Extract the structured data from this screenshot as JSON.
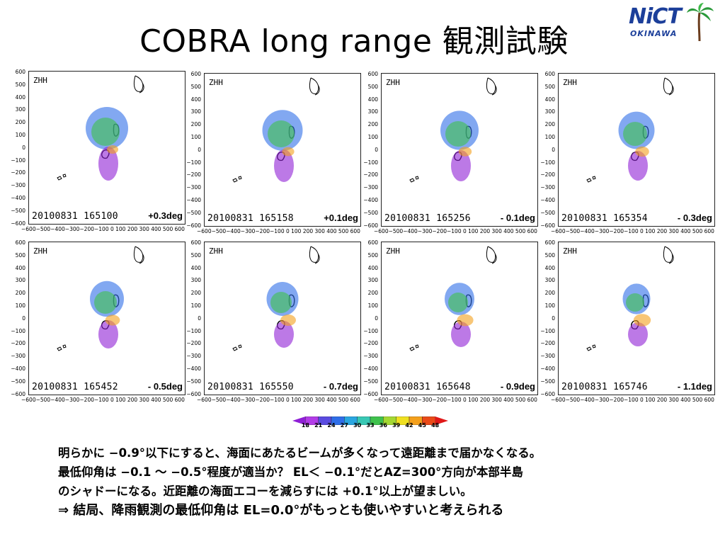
{
  "slide": {
    "title": "COBRA long range 観測試験",
    "logo": {
      "name": "NiCT",
      "sub": "OKINAWA"
    }
  },
  "axes": {
    "y_ticks": [
      "600",
      "500",
      "400",
      "300",
      "200",
      "100",
      "0",
      "−100",
      "−200",
      "−300",
      "−400",
      "−500",
      "−600"
    ],
    "x_ticks": "−600−500−400−300−200−100  0  100 200 300 400 500 600"
  },
  "panels": [
    {
      "product": "ZHH",
      "timestamp": "20100831  165100",
      "elevation": "+0.3deg"
    },
    {
      "product": "ZHH",
      "timestamp": "20100831  165158",
      "elevation": "+0.1deg"
    },
    {
      "product": "ZHH",
      "timestamp": "20100831  165256",
      "elevation": "- 0.1deg"
    },
    {
      "product": "ZHH",
      "timestamp": "20100831  165354",
      "elevation": "- 0.3deg"
    },
    {
      "product": "ZHH",
      "timestamp": "20100831  165452",
      "elevation": "- 0.5deg"
    },
    {
      "product": "ZHH",
      "timestamp": "20100831  165550",
      "elevation": "- 0.7deg"
    },
    {
      "product": "ZHH",
      "timestamp": "20100831  165648",
      "elevation": "- 0.9deg"
    },
    {
      "product": "ZHH",
      "timestamp": "20100831  165746",
      "elevation": "- 1.1deg"
    }
  ],
  "colorbar": {
    "labels": [
      "18",
      "21",
      "24",
      "27",
      "30",
      "33",
      "36",
      "39",
      "42",
      "45",
      "48"
    ],
    "colors": [
      "#8f1fd6",
      "#b23ce8",
      "#5a4be0",
      "#2f6ee8",
      "#2aa6e0",
      "#38c8b4",
      "#3fc24d",
      "#a4d832",
      "#f0e020",
      "#f4a01c",
      "#ea4a18",
      "#e01818"
    ]
  },
  "notes": {
    "line1": "明らかに −0.9°以下にすると、海面にあたるビームが多くなって遠距離まで届かなくなる。",
    "line2": "最低仰角は −0.1 〜 −0.5°程度が適当か？  EL＜ −0.1°だとAZ=300°方向が本部半島",
    "line3": "のシャドーになる。近距離の海面エコーを減らすには +0.1°以上が望ましい。",
    "conclusion": "⇒ 結局、降雨観測の最低仰角は EL=0.0°がもっとも使いやすいと考えられる"
  }
}
